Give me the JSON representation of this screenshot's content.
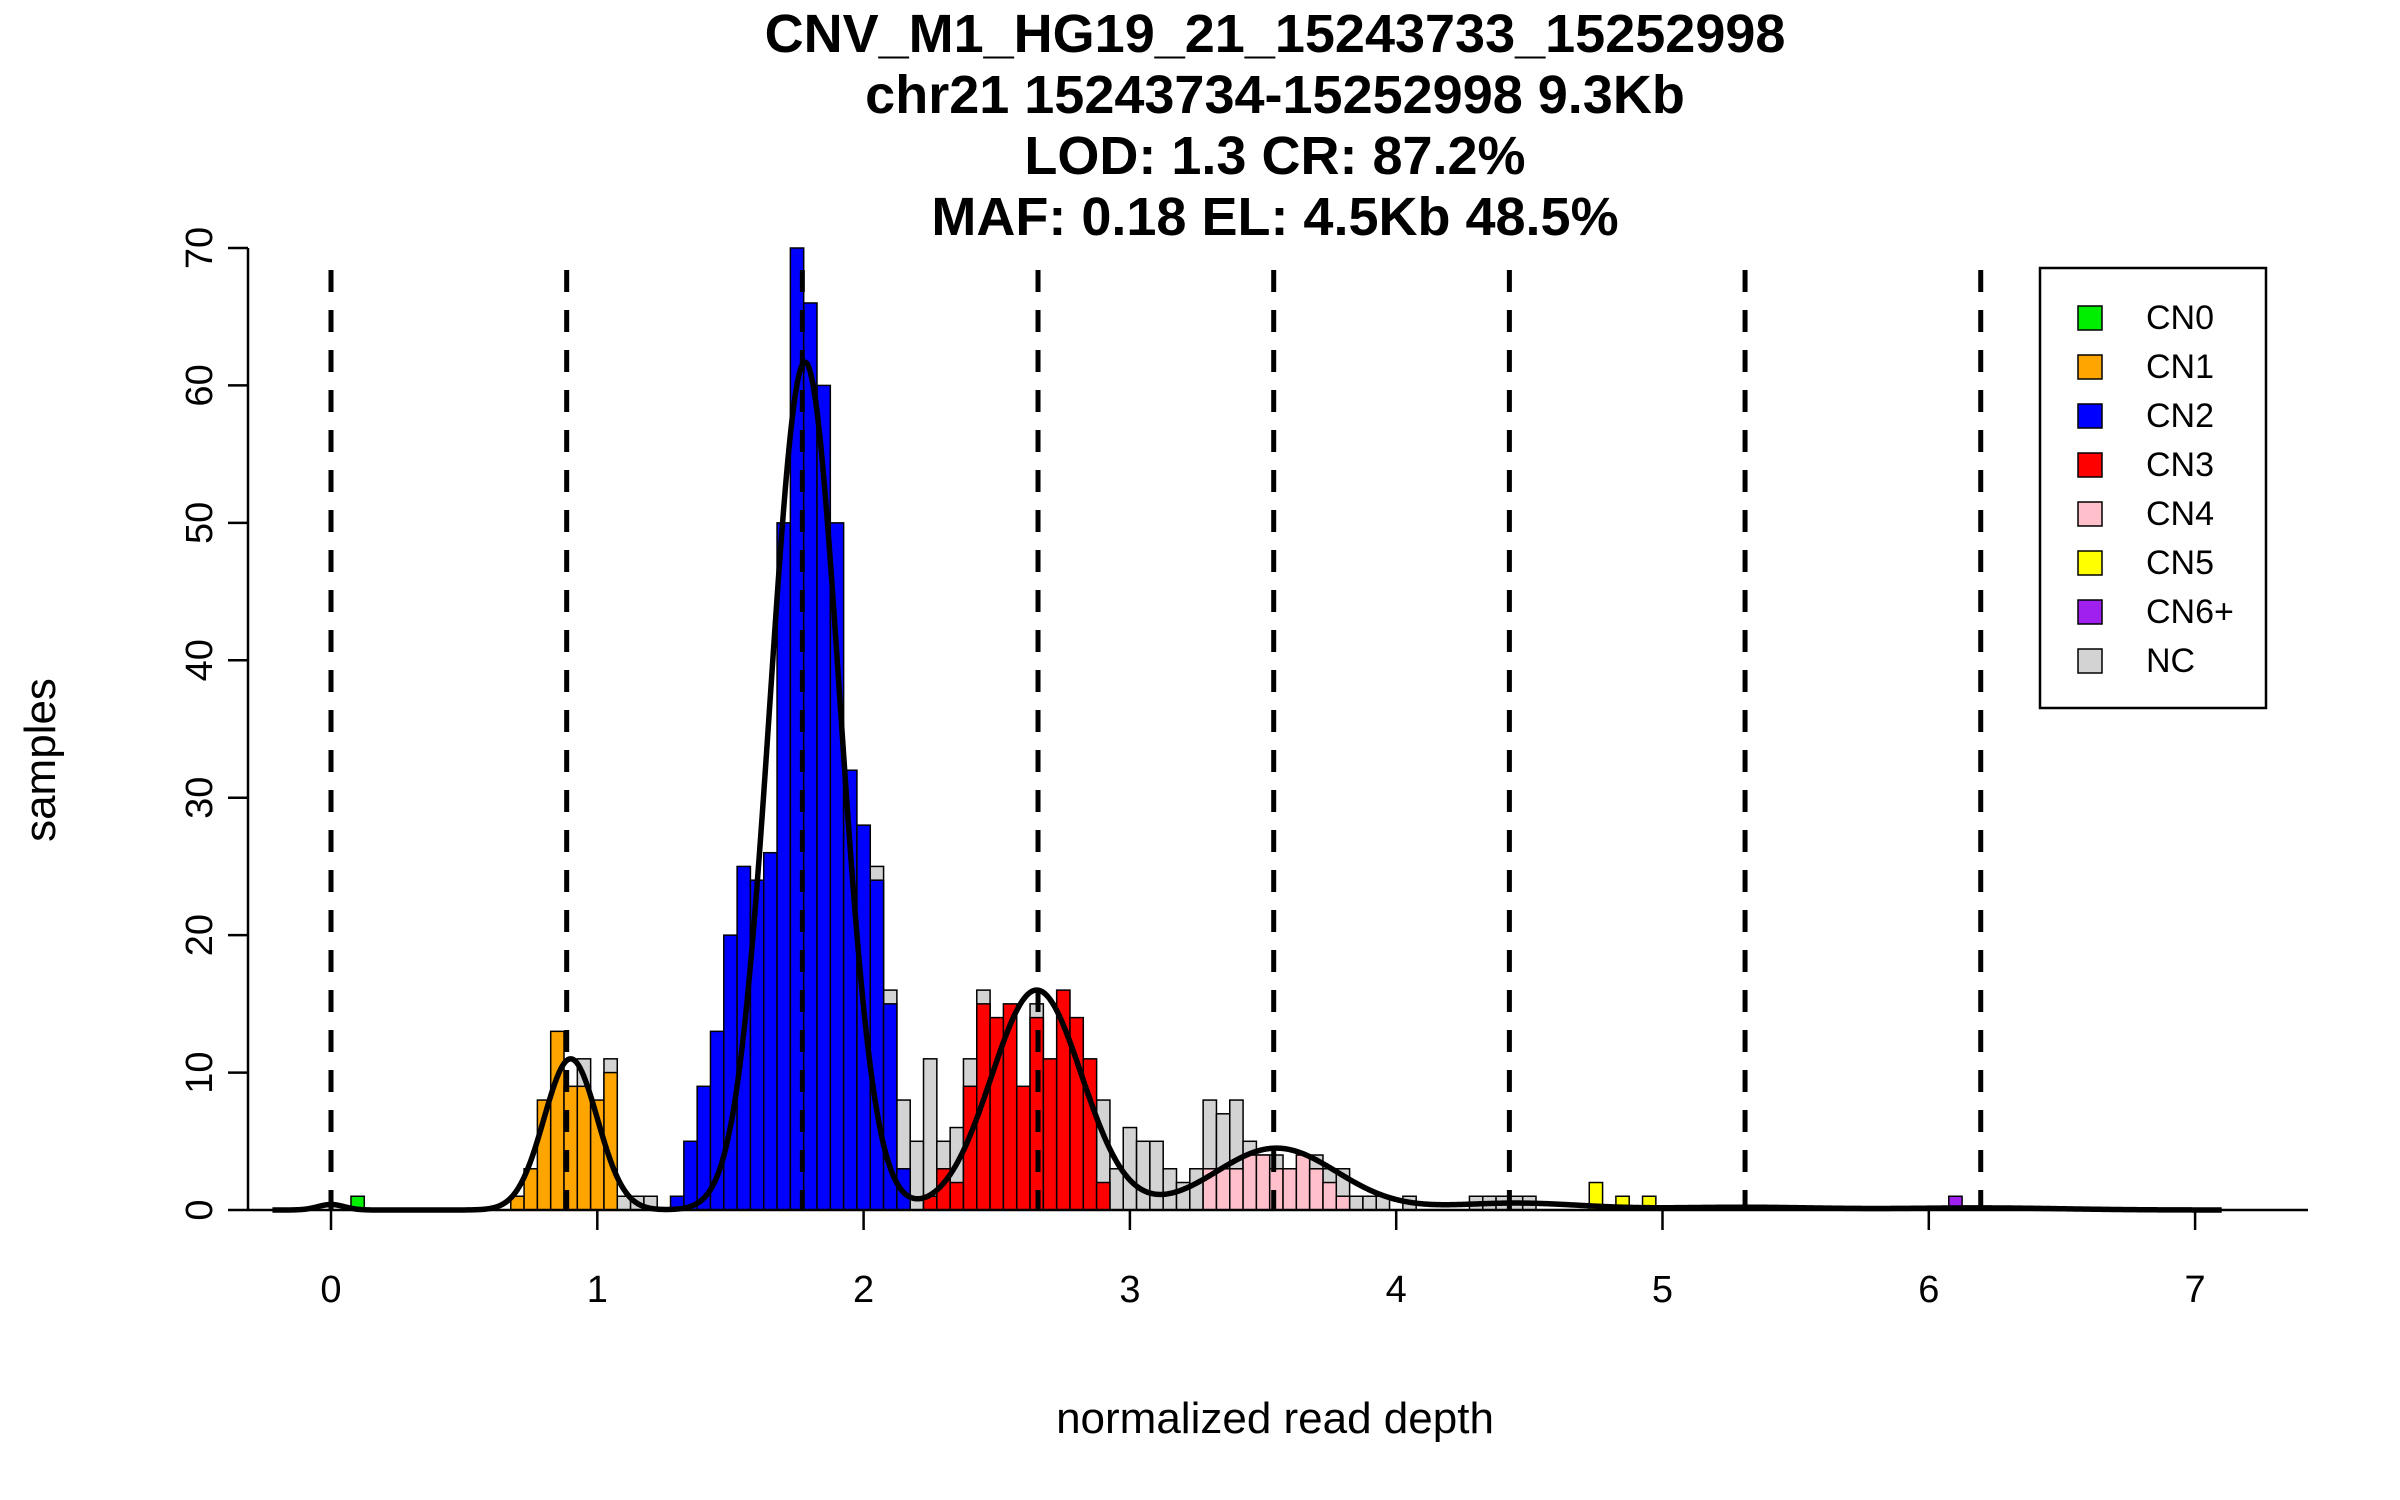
{
  "chart_data": {
    "type": "bar",
    "title_lines": [
      "CNV_M1_HG19_21_15243733_15252998",
      "chr21 15243734-15252998 9.3Kb",
      "LOD: 1.3 CR: 87.2%",
      "MAF: 0.18 EL: 4.5Kb 48.5%"
    ],
    "xlabel": "normalized read depth",
    "ylabel": "samples",
    "xlim": [
      -0.25,
      7.4
    ],
    "ylim": [
      0,
      70
    ],
    "x_ticks": [
      0,
      1,
      2,
      3,
      4,
      5,
      6,
      7
    ],
    "x_tick_labels": [
      "0",
      "1",
      "2",
      "3",
      "4",
      "5",
      "6",
      "7"
    ],
    "y_ticks": [
      0,
      10,
      20,
      30,
      40,
      50,
      60,
      70
    ],
    "y_tick_labels": [
      "0",
      "10",
      "20",
      "30",
      "40",
      "50",
      "60",
      "70"
    ],
    "bin_width": 0.05,
    "grid": false,
    "legend_position": "top-right",
    "legend": [
      {
        "label": "CN0",
        "color": "#00ee00"
      },
      {
        "label": "CN1",
        "color": "#ffa500"
      },
      {
        "label": "CN2",
        "color": "#0000ff"
      },
      {
        "label": "CN3",
        "color": "#ff0000"
      },
      {
        "label": "CN4",
        "color": "#ffc0cb"
      },
      {
        "label": "CN5",
        "color": "#ffff00"
      },
      {
        "label": "CN6+",
        "color": "#a020f0"
      },
      {
        "label": "NC",
        "color": "#d3d3d3"
      }
    ],
    "dashed_lines_x": [
      0,
      0.885,
      1.77,
      2.655,
      3.54,
      4.425,
      5.31,
      6.195
    ],
    "histogram": {
      "CN0": [
        [
          0.1,
          1
        ]
      ],
      "CN1": [
        [
          0.7,
          1
        ],
        [
          0.75,
          3
        ],
        [
          0.8,
          8
        ],
        [
          0.85,
          13
        ],
        [
          0.9,
          9
        ],
        [
          0.95,
          9
        ],
        [
          1.0,
          8
        ],
        [
          1.05,
          10
        ]
      ],
      "CN2": [
        [
          1.3,
          1
        ],
        [
          1.35,
          5
        ],
        [
          1.4,
          9
        ],
        [
          1.45,
          13
        ],
        [
          1.5,
          20
        ],
        [
          1.55,
          25
        ],
        [
          1.6,
          24
        ],
        [
          1.65,
          26
        ],
        [
          1.7,
          50
        ],
        [
          1.75,
          70
        ],
        [
          1.8,
          66
        ],
        [
          1.85,
          60
        ],
        [
          1.9,
          50
        ],
        [
          1.95,
          32
        ],
        [
          2.0,
          28
        ],
        [
          2.05,
          24
        ],
        [
          2.1,
          15
        ],
        [
          2.15,
          3
        ]
      ],
      "CN3": [
        [
          2.25,
          1
        ],
        [
          2.3,
          3
        ],
        [
          2.35,
          2
        ],
        [
          2.4,
          9
        ],
        [
          2.45,
          15
        ],
        [
          2.5,
          14
        ],
        [
          2.55,
          15
        ],
        [
          2.6,
          9
        ],
        [
          2.65,
          14
        ],
        [
          2.7,
          11
        ],
        [
          2.75,
          16
        ],
        [
          2.8,
          14
        ],
        [
          2.85,
          11
        ],
        [
          2.9,
          2
        ]
      ],
      "CN4": [
        [
          3.3,
          3
        ],
        [
          3.35,
          3
        ],
        [
          3.4,
          3
        ],
        [
          3.45,
          4
        ],
        [
          3.5,
          4
        ],
        [
          3.55,
          3
        ],
        [
          3.6,
          3
        ],
        [
          3.65,
          4
        ],
        [
          3.7,
          3
        ],
        [
          3.75,
          2
        ],
        [
          3.8,
          1
        ]
      ],
      "CN5": [
        [
          4.75,
          2
        ],
        [
          4.85,
          1
        ],
        [
          4.95,
          1
        ]
      ],
      "CN6+": [
        [
          6.1,
          1
        ]
      ],
      "NC": [
        [
          0.95,
          11
        ],
        [
          1.05,
          11
        ],
        [
          1.1,
          1
        ],
        [
          1.15,
          1
        ],
        [
          1.2,
          1
        ],
        [
          2.0,
          28
        ],
        [
          2.05,
          25
        ],
        [
          2.1,
          16
        ],
        [
          2.15,
          8
        ],
        [
          2.2,
          5
        ],
        [
          2.25,
          11
        ],
        [
          2.3,
          5
        ],
        [
          2.35,
          6
        ],
        [
          2.4,
          11
        ],
        [
          2.45,
          16
        ],
        [
          2.65,
          15
        ],
        [
          2.9,
          8
        ],
        [
          2.95,
          3
        ],
        [
          3.0,
          6
        ],
        [
          3.05,
          5
        ],
        [
          3.1,
          5
        ],
        [
          3.15,
          3
        ],
        [
          3.2,
          2
        ],
        [
          3.25,
          3
        ],
        [
          3.3,
          8
        ],
        [
          3.35,
          7
        ],
        [
          3.4,
          8
        ],
        [
          3.45,
          5
        ],
        [
          3.5,
          4
        ],
        [
          3.55,
          4
        ],
        [
          3.6,
          3
        ],
        [
          3.65,
          3
        ],
        [
          3.7,
          4
        ],
        [
          3.75,
          3
        ],
        [
          3.8,
          3
        ],
        [
          3.85,
          1
        ],
        [
          3.9,
          1
        ],
        [
          3.95,
          1
        ],
        [
          4.05,
          1
        ],
        [
          4.3,
          1
        ],
        [
          4.35,
          1
        ],
        [
          4.4,
          1
        ],
        [
          4.45,
          1
        ],
        [
          4.5,
          1
        ]
      ]
    },
    "fit_curves": [
      {
        "mean": 0.0,
        "sd": 0.05,
        "height": 0.4
      },
      {
        "mean": 0.9,
        "sd": 0.1,
        "height": 11
      },
      {
        "mean": 1.78,
        "sd": 0.13,
        "height": 61.7
      },
      {
        "mean": 2.65,
        "sd": 0.17,
        "height": 16
      },
      {
        "mean": 3.55,
        "sd": 0.23,
        "height": 4.5
      },
      {
        "mean": 4.45,
        "sd": 0.25,
        "height": 0.5
      },
      {
        "mean": 5.3,
        "sd": 0.3,
        "height": 0.2
      },
      {
        "mean": 6.2,
        "sd": 0.3,
        "height": 0.15
      }
    ]
  }
}
